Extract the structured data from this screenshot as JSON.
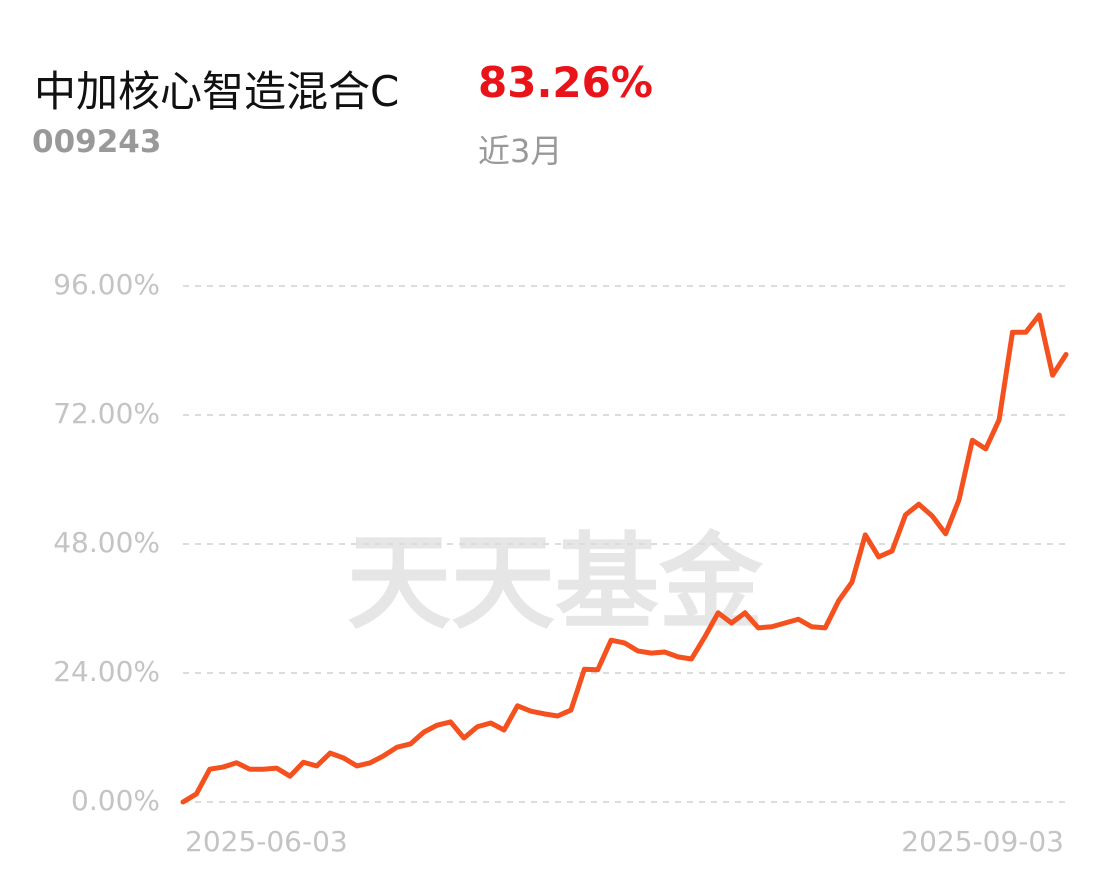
{
  "header": {
    "title": "中加核心智造混合C",
    "return": "83.26%",
    "code": "009243",
    "period": "近3月"
  },
  "chart_data": {
    "type": "line",
    "watermark": "天天基金",
    "categories": [
      "2025-06-03",
      null,
      null,
      null,
      null,
      null,
      null,
      null,
      null,
      null,
      null,
      null,
      null,
      null,
      null,
      null,
      null,
      null,
      null,
      null,
      null,
      null,
      null,
      null,
      null,
      null,
      null,
      null,
      null,
      null,
      null,
      null,
      null,
      null,
      null,
      null,
      null,
      null,
      null,
      null,
      null,
      null,
      null,
      null,
      null,
      null,
      null,
      null,
      null,
      null,
      null,
      null,
      null,
      null,
      null,
      null,
      null,
      null,
      null,
      null,
      null,
      null,
      null,
      null,
      null,
      null,
      "2025-09-03"
    ],
    "series": [
      {
        "name": "中加核心智造混合C",
        "color": "#f4511e",
        "values": [
          0,
          1.5,
          6.1,
          6.5,
          7.3,
          6.1,
          6.1,
          6.3,
          4.8,
          7.4,
          6.7,
          9.1,
          8.2,
          6.7,
          7.3,
          8.6,
          10.2,
          10.8,
          13.0,
          14.3,
          14.9,
          11.9,
          14.0,
          14.7,
          13.4,
          17.9,
          16.9,
          16.4,
          16.0,
          17.1,
          24.7,
          24.6,
          30.1,
          29.6,
          28.1,
          27.7,
          27.9,
          27.0,
          26.6,
          30.7,
          35.2,
          33.3,
          35.2,
          32.4,
          32.6,
          33.3,
          34.0,
          32.6,
          32.4,
          37.4,
          40.9,
          49.7,
          45.6,
          46.7,
          53.4,
          55.4,
          53.2,
          49.9,
          56.2,
          67.3,
          65.7,
          71.1,
          87.4,
          87.4,
          90.6,
          79.4,
          83.26
        ]
      }
    ],
    "ylim": [
      0,
      96
    ],
    "yticks": [
      {
        "value": 0,
        "label": "0.00%"
      },
      {
        "value": 24,
        "label": "24.00%"
      },
      {
        "value": 48,
        "label": "48.00%"
      },
      {
        "value": 72,
        "label": "72.00%"
      },
      {
        "value": 96,
        "label": "96.00%"
      }
    ],
    "grid": true
  }
}
